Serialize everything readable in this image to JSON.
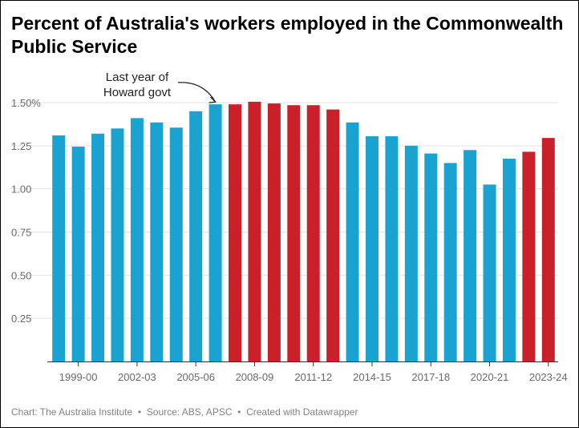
{
  "title": "Percent of Australia's workers employed in the Commonwealth Public Service",
  "footer": {
    "chart_credit": "Chart: The Australia Institute",
    "source": "Source: ABS, APSC",
    "tool": "Created with Datawrapper"
  },
  "colors": {
    "blue": "#1aa3d1",
    "red": "#c9202a"
  },
  "chart_data": {
    "type": "bar",
    "title": "Percent of Australia's workers employed in the Commonwealth Public Service",
    "xlabel": "",
    "ylabel": "",
    "ylim": [
      0,
      1.5
    ],
    "yticks": [
      {
        "value": 1.5,
        "label": "1.50%"
      },
      {
        "value": 1.25,
        "label": "1.25"
      },
      {
        "value": 1.0,
        "label": "1.00"
      },
      {
        "value": 0.75,
        "label": "0.75"
      },
      {
        "value": 0.5,
        "label": "0.50"
      },
      {
        "value": 0.25,
        "label": "0.25"
      }
    ],
    "grid": true,
    "legend": "none",
    "categories": [
      "1998-99",
      "1999-00",
      "2000-01",
      "2001-02",
      "2002-03",
      "2003-04",
      "2004-05",
      "2005-06",
      "2006-07",
      "2007-08",
      "2008-09",
      "2009-10",
      "2010-11",
      "2011-12",
      "2012-13",
      "2013-14",
      "2014-15",
      "2015-16",
      "2016-17",
      "2017-18",
      "2018-19",
      "2019-20",
      "2020-21",
      "2021-22",
      "2022-23",
      "2023-24"
    ],
    "values": [
      1.31,
      1.245,
      1.32,
      1.35,
      1.41,
      1.385,
      1.355,
      1.45,
      1.49,
      1.49,
      1.505,
      1.495,
      1.485,
      1.485,
      1.46,
      1.385,
      1.305,
      1.305,
      1.25,
      1.205,
      1.15,
      1.225,
      1.025,
      1.175,
      1.215,
      1.295
    ],
    "colors": [
      "blue",
      "blue",
      "blue",
      "blue",
      "blue",
      "blue",
      "blue",
      "blue",
      "blue",
      "red",
      "red",
      "red",
      "red",
      "red",
      "red",
      "blue",
      "blue",
      "blue",
      "blue",
      "blue",
      "blue",
      "blue",
      "blue",
      "blue",
      "red",
      "red"
    ],
    "x_tick_labels": [
      {
        "index": 1,
        "label": "1999-00"
      },
      {
        "index": 4,
        "label": "2002-03"
      },
      {
        "index": 7,
        "label": "2005-06"
      },
      {
        "index": 10,
        "label": "2008-09"
      },
      {
        "index": 13,
        "label": "2011-12"
      },
      {
        "index": 16,
        "label": "2014-15"
      },
      {
        "index": 19,
        "label": "2017-18"
      },
      {
        "index": 22,
        "label": "2020-21"
      },
      {
        "index": 25,
        "label": "2023-24"
      }
    ],
    "annotations": [
      {
        "lines": [
          "Last year of",
          "Howard govt"
        ],
        "target_index": 8
      }
    ]
  }
}
